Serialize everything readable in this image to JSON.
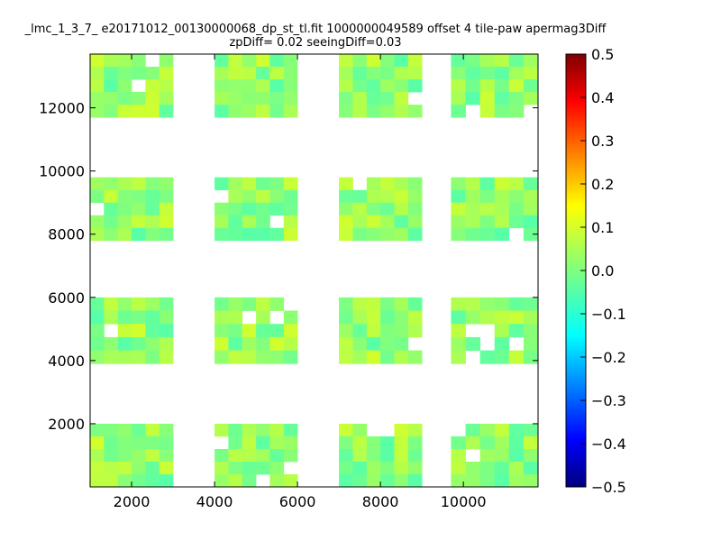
{
  "chart_data": {
    "type": "heatmap",
    "title_line1": "_lmc_1_3_7_ e20171012_00130000068_dp_st_tl.fit 1000000049589 offset 4 tile-paw apermag3Diff",
    "title_line2": "zpDiff= 0.02 seeingDiff=0.03",
    "xlabel": "",
    "ylabel": "",
    "xlim": [
      1000,
      11800
    ],
    "ylim": [
      0,
      13700
    ],
    "xticks": [
      "2000",
      "4000",
      "6000",
      "8000",
      "10000"
    ],
    "yticks": [
      "2000",
      "4000",
      "6000",
      "8000",
      "10000",
      "12000"
    ],
    "colorbar": {
      "vmin": -0.5,
      "vmax": 0.5,
      "colormap": "jet",
      "ticks": [
        "0.5",
        "0.4",
        "0.3",
        "0.2",
        "0.1",
        "0.0",
        "−0.1",
        "−0.2",
        "−0.3",
        "−0.4",
        "−0.5"
      ]
    },
    "tile_columns": [
      {
        "x": [
          1000,
          3000
        ]
      },
      {
        "x": [
          4000,
          6000
        ]
      },
      {
        "x": [
          7000,
          9000
        ]
      },
      {
        "x": [
          9700,
          11800
        ]
      }
    ],
    "tile_rows": [
      {
        "y": [
          0,
          2000
        ]
      },
      {
        "y": [
          3900,
          6000
        ]
      },
      {
        "y": [
          7800,
          9800
        ]
      },
      {
        "y": [
          11700,
          13700
        ]
      }
    ],
    "typical_value": 0.02,
    "value_range": [
      -0.1,
      0.1
    ]
  }
}
